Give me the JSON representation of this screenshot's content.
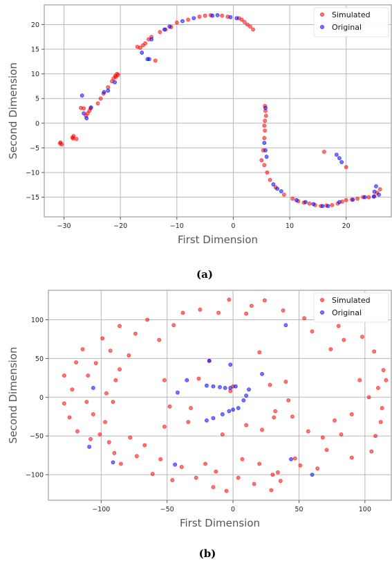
{
  "chart_data": [
    {
      "type": "scatter",
      "caption": "(a)",
      "xlabel": "First Dimension",
      "ylabel": "Second Dimension",
      "xlim": [
        -33.5,
        28
      ],
      "ylim": [
        -19,
        24
      ],
      "xticks": [
        -30,
        -20,
        -10,
        0,
        10,
        20
      ],
      "yticks": [
        -15,
        -10,
        -5,
        0,
        5,
        10,
        15,
        20
      ],
      "grid": true,
      "legend": "top-right",
      "series": [
        {
          "name": "Simulated",
          "color": "#ff0000",
          "points": [
            [
              -30.6,
              -3.9
            ],
            [
              -30.4,
              -4.3
            ],
            [
              -30.7,
              -4.1
            ],
            [
              -28.5,
              -2.9
            ],
            [
              -28.3,
              -2.6
            ],
            [
              -28.4,
              -3.1
            ],
            [
              -27.8,
              -3.2
            ],
            [
              -27,
              3.1
            ],
            [
              -26.5,
              3
            ],
            [
              -26.1,
              1.5
            ],
            [
              -25.8,
              2
            ],
            [
              -25.5,
              2.5
            ],
            [
              -25.3,
              3
            ],
            [
              -24,
              4
            ],
            [
              -23.5,
              5
            ],
            [
              -23,
              6
            ],
            [
              -22.2,
              7.3
            ],
            [
              -21.5,
              8.5
            ],
            [
              -21.2,
              9.1
            ],
            [
              -20.9,
              9.6
            ],
            [
              -20.6,
              10
            ],
            [
              -20.8,
              9.4
            ],
            [
              -20.4,
              9.8
            ],
            [
              -17,
              15.5
            ],
            [
              -16.5,
              15.3
            ],
            [
              -16,
              15.8
            ],
            [
              -15.6,
              16.2
            ],
            [
              -15,
              17
            ],
            [
              -14.5,
              17.5
            ],
            [
              -13.8,
              12.7
            ],
            [
              -13,
              18.5
            ],
            [
              -12,
              19
            ],
            [
              -11,
              19.5
            ],
            [
              -10,
              20.4
            ],
            [
              -8,
              21
            ],
            [
              -6,
              21.6
            ],
            [
              -5,
              21.8
            ],
            [
              -4,
              21.9
            ],
            [
              -2,
              21.8
            ],
            [
              -1,
              21.6
            ],
            [
              1,
              21.3
            ],
            [
              1.5,
              21
            ],
            [
              2,
              20.5
            ],
            [
              2.5,
              20
            ],
            [
              3,
              19.6
            ],
            [
              3.5,
              19
            ],
            [
              5.6,
              3.5
            ],
            [
              5.7,
              2.5
            ],
            [
              5.8,
              1.5
            ],
            [
              5.6,
              0.5
            ],
            [
              5.5,
              -0.5
            ],
            [
              5.6,
              -1.5
            ],
            [
              5.5,
              -3
            ],
            [
              5.3,
              -5.5
            ],
            [
              5,
              -7.5
            ],
            [
              5.5,
              -8.5
            ],
            [
              6,
              -10
            ],
            [
              6.5,
              -11.5
            ],
            [
              7.5,
              -13
            ],
            [
              9,
              -14.5
            ],
            [
              10.5,
              -15.3
            ],
            [
              11.5,
              -15.8
            ],
            [
              12.5,
              -16.1
            ],
            [
              13.5,
              -16.3
            ],
            [
              14.5,
              -16.6
            ],
            [
              15.5,
              -16.8
            ],
            [
              16.5,
              -16.7
            ],
            [
              17.5,
              -16.6
            ],
            [
              18.5,
              -16.3
            ],
            [
              19.3,
              -15.9
            ],
            [
              20,
              -15.6
            ],
            [
              21,
              -15.5
            ],
            [
              22,
              -15.3
            ],
            [
              23,
              -15
            ],
            [
              24,
              -15
            ],
            [
              25,
              -14.8
            ],
            [
              16.1,
              -5.8
            ],
            [
              20,
              -8.9
            ],
            [
              25.5,
              -14.1
            ],
            [
              26,
              -13.4
            ]
          ]
        },
        {
          "name": "Original",
          "color": "#0000ff",
          "points": [
            [
              -26.8,
              5.6
            ],
            [
              -26.5,
              2
            ],
            [
              -26,
              1
            ],
            [
              -25.2,
              3.2
            ],
            [
              -22.9,
              6.3
            ],
            [
              -22.2,
              6.6
            ],
            [
              -21,
              8.3
            ],
            [
              -16.2,
              14.3
            ],
            [
              -15.2,
              13
            ],
            [
              -14.9,
              13
            ],
            [
              -14.5,
              17
            ],
            [
              -12.2,
              19
            ],
            [
              -11.3,
              19.6
            ],
            [
              -9,
              20.7
            ],
            [
              -7,
              21.3
            ],
            [
              -3.7,
              21.8
            ],
            [
              -2.8,
              21.9
            ],
            [
              -0.5,
              21.5
            ],
            [
              0.6,
              21.3
            ],
            [
              5.5,
              -4
            ],
            [
              5.7,
              -5.5
            ],
            [
              5.9,
              -6.8
            ],
            [
              5.7,
              3.1
            ],
            [
              7.1,
              -12.4
            ],
            [
              7.8,
              -13.3
            ],
            [
              8.5,
              -13.8
            ],
            [
              11.2,
              -15.6
            ],
            [
              12.8,
              -16
            ],
            [
              14.2,
              -16.4
            ],
            [
              15.8,
              -16.8
            ],
            [
              16.8,
              -16.8
            ],
            [
              18.8,
              -16
            ],
            [
              18.3,
              -6.4
            ],
            [
              18.8,
              -7.1
            ],
            [
              19.2,
              -7.9
            ],
            [
              21.2,
              -15.5
            ],
            [
              23.3,
              -15
            ],
            [
              24.9,
              -14.9
            ],
            [
              25,
              -13.9
            ],
            [
              25.3,
              -12.8
            ],
            [
              25.8,
              -14.5
            ]
          ]
        }
      ]
    },
    {
      "type": "scatter",
      "caption": "(b)",
      "xlabel": "First Dimension",
      "ylabel": "Second Dimension",
      "xlim": [
        -140,
        120
      ],
      "ylim": [
        -133,
        138
      ],
      "xticks": [
        -100,
        -50,
        0,
        50,
        100
      ],
      "yticks": [
        -100,
        -50,
        0,
        50,
        100
      ],
      "grid": true,
      "legend": "top-right",
      "series": [
        {
          "name": "Simulated",
          "color": "#ff0000",
          "points": [
            [
              -128,
              -8
            ],
            [
              -128,
              28
            ],
            [
              -124,
              -26
            ],
            [
              -122,
              10
            ],
            [
              -119,
              45
            ],
            [
              -118,
              -44
            ],
            [
              -114,
              62
            ],
            [
              -111,
              -6
            ],
            [
              -110,
              28
            ],
            [
              -108,
              -54
            ],
            [
              -106,
              -22
            ],
            [
              -104,
              44
            ],
            [
              -101,
              -48
            ],
            [
              -99,
              76
            ],
            [
              -97,
              -32
            ],
            [
              -96,
              5
            ],
            [
              -94,
              -58
            ],
            [
              -93,
              60
            ],
            [
              -91,
              -6
            ],
            [
              -90,
              -72
            ],
            [
              -89,
              22
            ],
            [
              -86,
              36
            ],
            [
              -85,
              -86
            ],
            [
              -86,
              92
            ],
            [
              -79,
              54
            ],
            [
              -78,
              -52
            ],
            [
              -74,
              82
            ],
            [
              -73,
              -76
            ],
            [
              -67,
              -62
            ],
            [
              -65,
              100
            ],
            [
              -61,
              -99
            ],
            [
              -56,
              74
            ],
            [
              -55,
              -80
            ],
            [
              -52,
              -38
            ],
            [
              -52,
              22
            ],
            [
              -48,
              -12
            ],
            [
              -46,
              -107
            ],
            [
              -45,
              93
            ],
            [
              -39,
              -90
            ],
            [
              -38,
              109
            ],
            [
              -34,
              -32
            ],
            [
              -32,
              -14
            ],
            [
              -28,
              -104
            ],
            [
              -26,
              24
            ],
            [
              -25,
              113
            ],
            [
              -21,
              -86
            ],
            [
              -18,
              47
            ],
            [
              -15,
              -116
            ],
            [
              -13,
              -96
            ],
            [
              -11,
              109
            ],
            [
              -8,
              -48
            ],
            [
              -5,
              -121
            ],
            [
              -3,
              126
            ],
            [
              -2,
              8
            ],
            [
              0,
              14
            ],
            [
              4,
              -104
            ],
            [
              7,
              -80
            ],
            [
              10,
              108
            ],
            [
              10,
              -36
            ],
            [
              14,
              118
            ],
            [
              16,
              -112
            ],
            [
              20,
              -86
            ],
            [
              20,
              58
            ],
            [
              22,
              -42
            ],
            [
              24,
              125
            ],
            [
              28,
              16
            ],
            [
              29,
              -120
            ],
            [
              30,
              -100
            ],
            [
              31,
              -26
            ],
            [
              32,
              -18
            ],
            [
              34,
              -97
            ],
            [
              36,
              -108
            ],
            [
              38,
              112
            ],
            [
              40,
              20
            ],
            [
              42,
              -4
            ],
            [
              45,
              -25
            ],
            [
              47,
              -79
            ],
            [
              51,
              -88
            ],
            [
              54,
              102
            ],
            [
              57,
              -44
            ],
            [
              60,
              85
            ],
            [
              64,
              -92
            ],
            [
              68,
              -52
            ],
            [
              71,
              -68
            ],
            [
              74,
              62
            ],
            [
              77,
              -30
            ],
            [
              80,
              92
            ],
            [
              82,
              -48
            ],
            [
              84,
              74
            ],
            [
              90,
              -78
            ],
            [
              90,
              -22
            ],
            [
              96,
              22
            ],
            [
              98,
              78
            ],
            [
              103,
              0
            ],
            [
              105,
              -70
            ],
            [
              107,
              59
            ],
            [
              108,
              -50
            ],
            [
              110,
              12
            ],
            [
              112,
              -32
            ],
            [
              113,
              -14
            ],
            [
              114,
              35
            ],
            [
              116,
              22
            ]
          ]
        },
        {
          "name": "Original",
          "color": "#0000ff",
          "points": [
            [
              -106,
              12
            ],
            [
              -109,
              -64
            ],
            [
              -91,
              -84
            ],
            [
              -44,
              -87
            ],
            [
              -42,
              6
            ],
            [
              -35,
              22
            ],
            [
              -20,
              -30
            ],
            [
              -15,
              -27
            ],
            [
              -8,
              -22
            ],
            [
              -3,
              -18
            ],
            [
              0,
              -16
            ],
            [
              4,
              -14
            ],
            [
              8,
              -4
            ],
            [
              10,
              2
            ],
            [
              -20,
              15
            ],
            [
              -15,
              14
            ],
            [
              -10,
              13
            ],
            [
              -6,
              12
            ],
            [
              -2,
              12
            ],
            [
              2,
              14
            ],
            [
              -18,
              47
            ],
            [
              -2,
              42
            ],
            [
              12,
              10
            ],
            [
              22,
              30
            ],
            [
              40,
              93
            ],
            [
              44,
              -80
            ],
            [
              60,
              -100
            ]
          ]
        }
      ]
    }
  ]
}
